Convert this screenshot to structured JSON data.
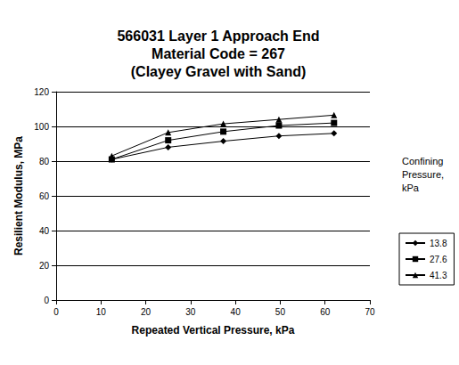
{
  "chart_data": {
    "type": "line",
    "title": "566031 Layer 1 Approach End\nMaterial Code = 267\n(Clayey Gravel with Sand)",
    "x_label": "Repeated Vertical Pressure, kPa",
    "y_label": "Resilient Modulus, MPa",
    "legend_title": "Confining Pressure, kPa",
    "legend": "right",
    "grid": "y",
    "x": [
      12.4,
      25,
      37.3,
      49.7,
      62
    ],
    "xlim": [
      0,
      70
    ],
    "xticks": [
      0,
      10,
      20,
      30,
      40,
      50,
      60,
      70
    ],
    "ylim": [
      0,
      120
    ],
    "yticks": [
      0,
      20,
      40,
      60,
      80,
      100,
      120
    ],
    "series": [
      {
        "name": "13.8",
        "color": "#000000",
        "marker": "diamond",
        "line_style": "solid",
        "values": [
          81,
          88,
          91.5,
          94.5,
          96
        ]
      },
      {
        "name": "27.6",
        "color": "#000000",
        "marker": "square",
        "line_style": "solid",
        "values": [
          81,
          92,
          97,
          100.5,
          102
        ]
      },
      {
        "name": "41.3",
        "color": "#000000",
        "marker": "triangle",
        "line_style": "solid",
        "values": [
          83,
          96.5,
          101.5,
          104,
          106.5
        ]
      }
    ]
  }
}
